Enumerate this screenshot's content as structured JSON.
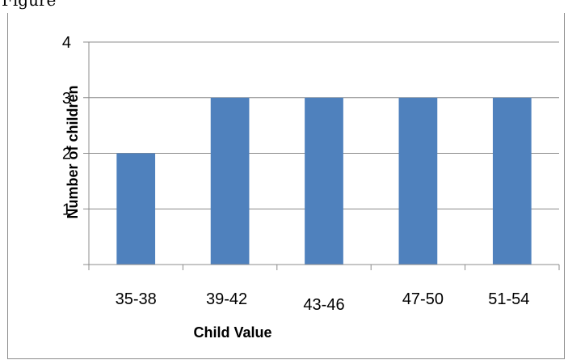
{
  "figure": {
    "caption_fragment": "Figure"
  },
  "chart_data": {
    "type": "bar",
    "categories": [
      "35-38",
      "39-42",
      "43-46",
      "47-50",
      "51-54"
    ],
    "values": [
      2,
      3,
      3,
      3,
      3
    ],
    "xlabel": "Child Value",
    "ylabel": "Number of children",
    "ylim": [
      0,
      4
    ],
    "yticks": [
      0,
      1,
      2,
      3,
      4
    ],
    "ytick_labels_visible": [
      "4",
      "3",
      "2",
      "1"
    ],
    "grid": true,
    "legend": "none",
    "colors": {
      "bar": "#4F81BD",
      "grid": "#8c8c8c",
      "axis": "#8c8c8c"
    }
  }
}
